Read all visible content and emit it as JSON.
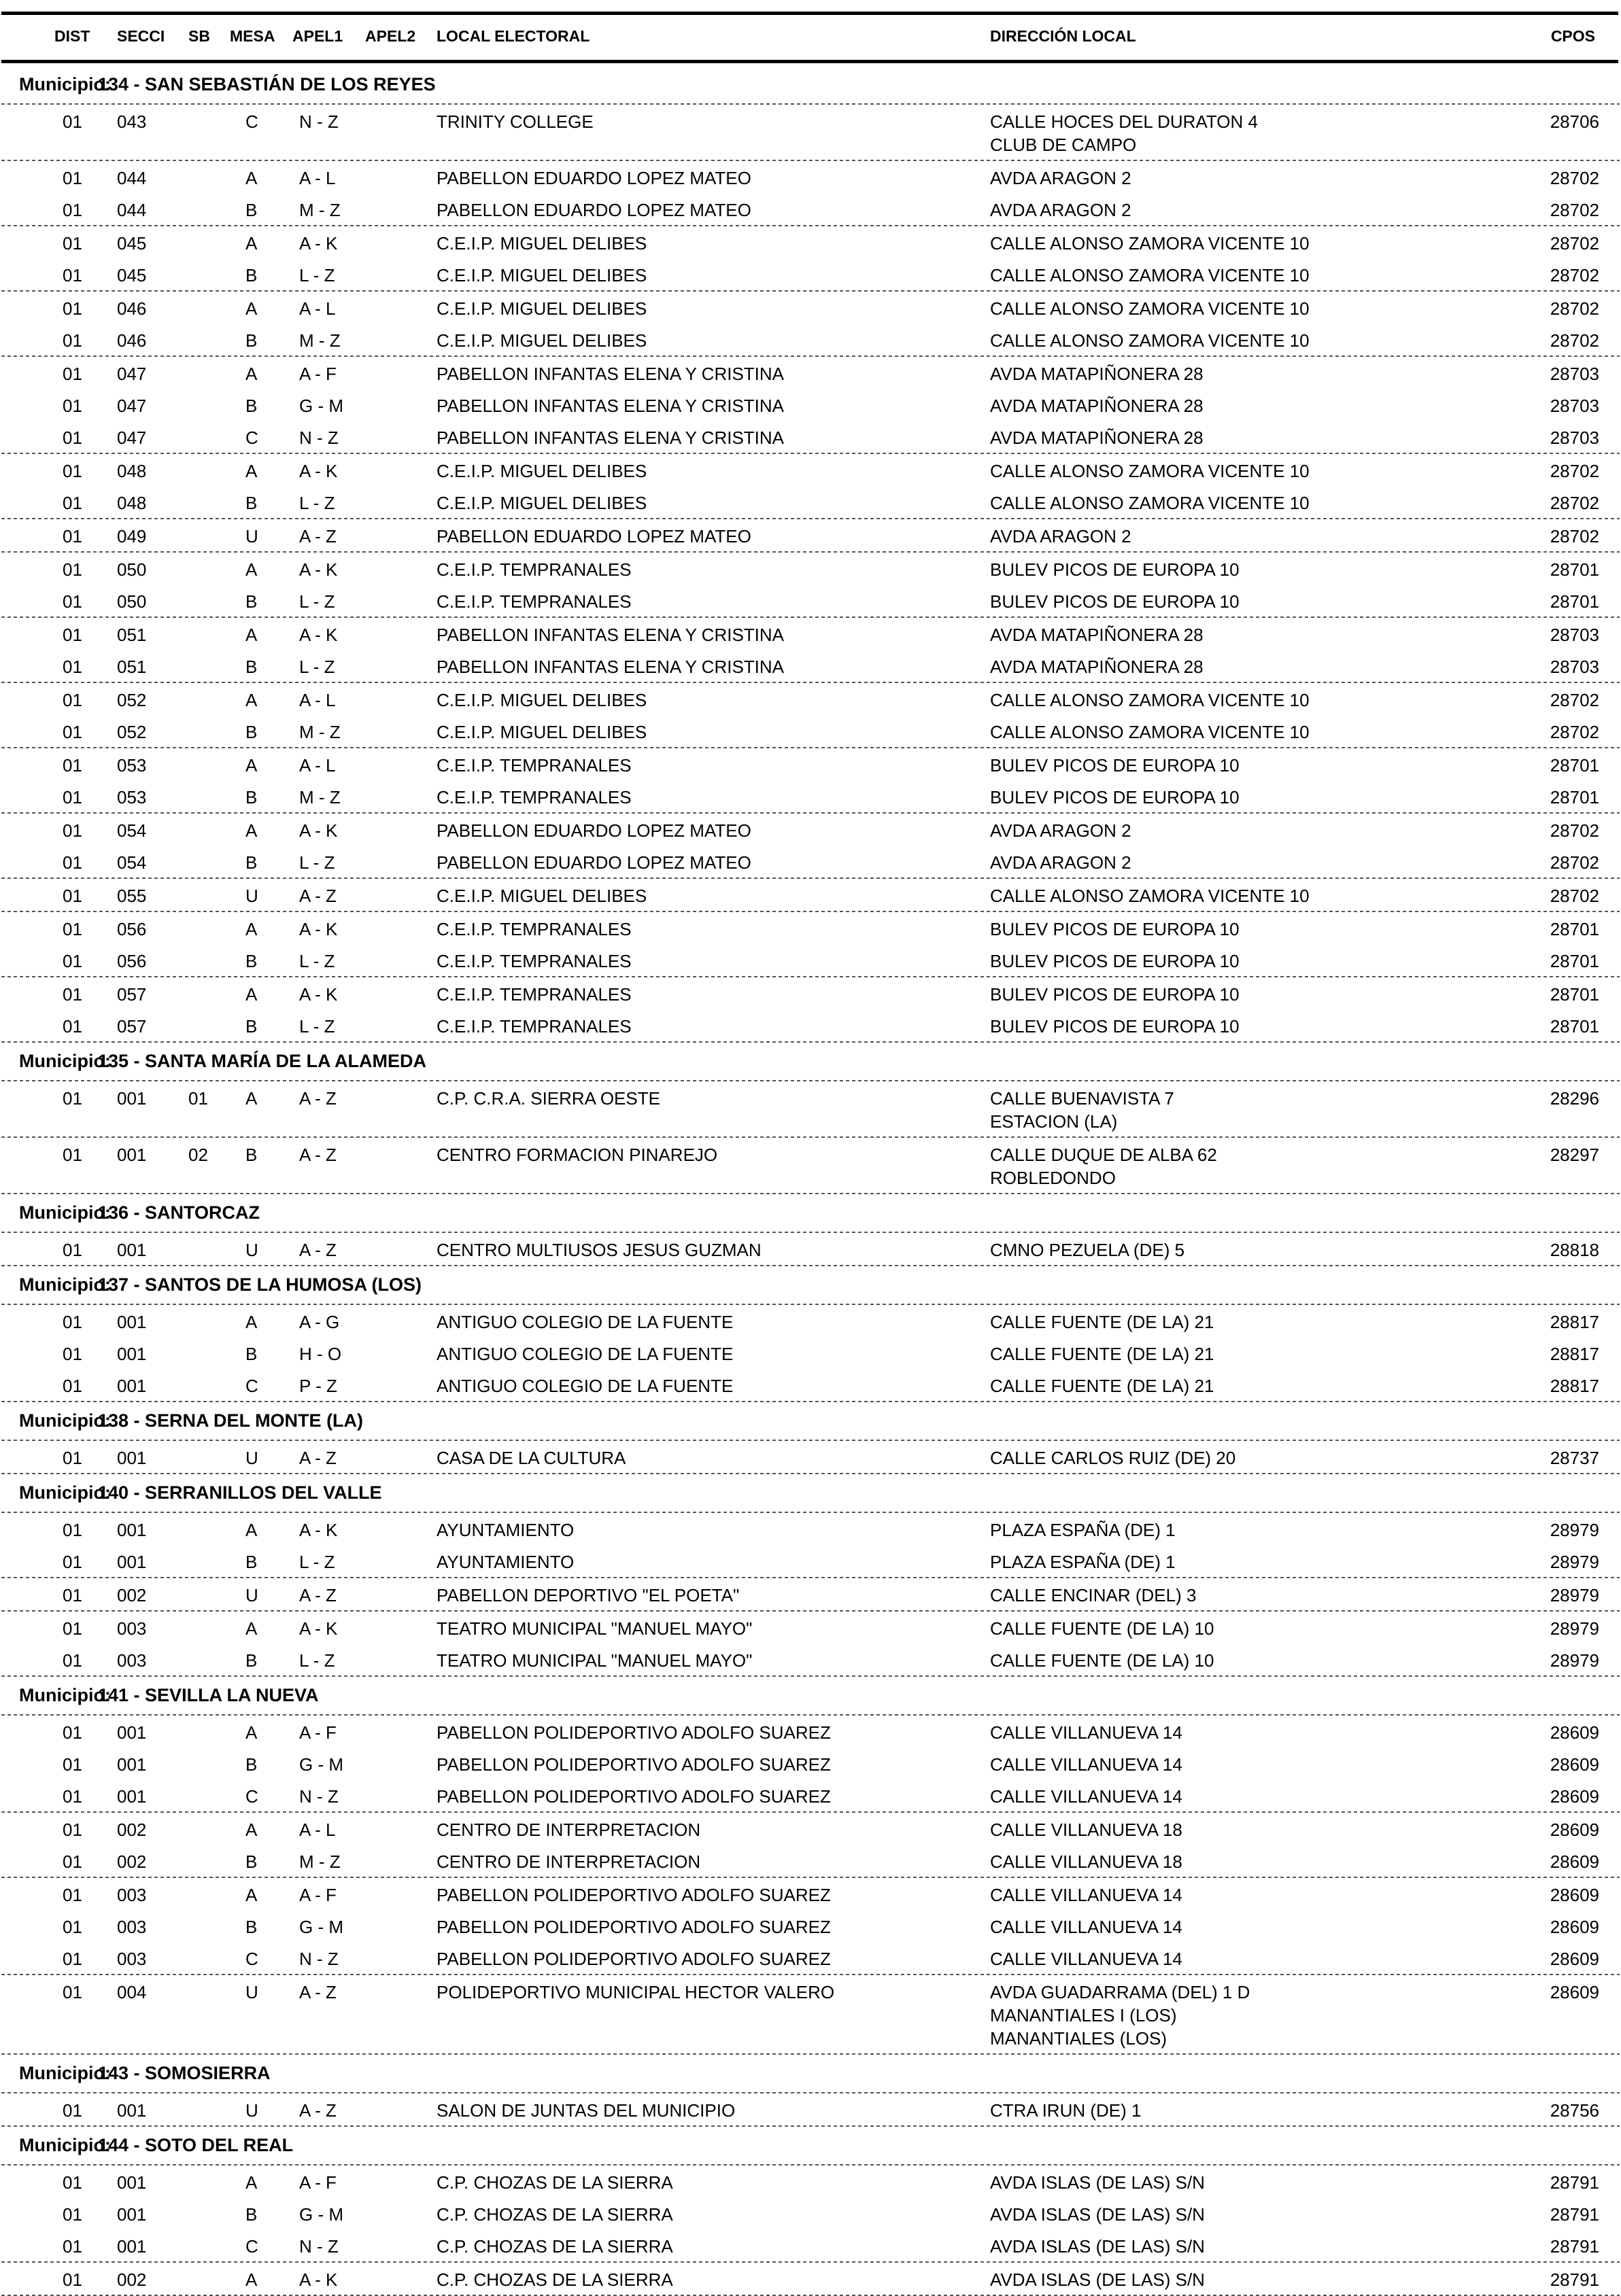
{
  "header": {
    "dist": "DIST",
    "secci": "SECCI",
    "sb": "SB",
    "mesa": "MESA",
    "apel1": "APEL1",
    "apel2": "APEL2",
    "local": "LOCAL ELECTORAL",
    "direccion": "DIRECCIÓN LOCAL",
    "cpos": "CPOS"
  },
  "municipio_label": "Municipio:",
  "municipios": [
    {
      "name": "134 - SAN SEBASTIÁN DE LOS REYES",
      "groups": [
        [
          {
            "dist": "01",
            "secci": "043",
            "sb": "",
            "mesa": "C",
            "apel": "N - Z",
            "local": "TRINITY COLLEGE",
            "dir": [
              "CALLE HOCES DEL DURATON 4",
              "CLUB DE CAMPO"
            ],
            "cpos": "28706"
          }
        ],
        [
          {
            "dist": "01",
            "secci": "044",
            "sb": "",
            "mesa": "A",
            "apel": "A - L",
            "local": "PABELLON EDUARDO LOPEZ MATEO",
            "dir": [
              "AVDA ARAGON 2"
            ],
            "cpos": "28702"
          },
          {
            "dist": "01",
            "secci": "044",
            "sb": "",
            "mesa": "B",
            "apel": "M - Z",
            "local": "PABELLON EDUARDO LOPEZ MATEO",
            "dir": [
              "AVDA ARAGON 2"
            ],
            "cpos": "28702"
          }
        ],
        [
          {
            "dist": "01",
            "secci": "045",
            "sb": "",
            "mesa": "A",
            "apel": "A - K",
            "local": "C.E.I.P. MIGUEL DELIBES",
            "dir": [
              "CALLE ALONSO ZAMORA VICENTE 10"
            ],
            "cpos": "28702"
          },
          {
            "dist": "01",
            "secci": "045",
            "sb": "",
            "mesa": "B",
            "apel": "L - Z",
            "local": "C.E.I.P. MIGUEL DELIBES",
            "dir": [
              "CALLE ALONSO ZAMORA VICENTE 10"
            ],
            "cpos": "28702"
          }
        ],
        [
          {
            "dist": "01",
            "secci": "046",
            "sb": "",
            "mesa": "A",
            "apel": "A - L",
            "local": "C.E.I.P. MIGUEL DELIBES",
            "dir": [
              "CALLE ALONSO ZAMORA VICENTE 10"
            ],
            "cpos": "28702"
          },
          {
            "dist": "01",
            "secci": "046",
            "sb": "",
            "mesa": "B",
            "apel": "M - Z",
            "local": "C.E.I.P. MIGUEL DELIBES",
            "dir": [
              "CALLE ALONSO ZAMORA VICENTE 10"
            ],
            "cpos": "28702"
          }
        ],
        [
          {
            "dist": "01",
            "secci": "047",
            "sb": "",
            "mesa": "A",
            "apel": "A - F",
            "local": "PABELLON INFANTAS ELENA Y CRISTINA",
            "dir": [
              "AVDA MATAPIÑONERA 28"
            ],
            "cpos": "28703"
          },
          {
            "dist": "01",
            "secci": "047",
            "sb": "",
            "mesa": "B",
            "apel": "G - M",
            "local": "PABELLON INFANTAS ELENA Y CRISTINA",
            "dir": [
              "AVDA MATAPIÑONERA 28"
            ],
            "cpos": "28703"
          },
          {
            "dist": "01",
            "secci": "047",
            "sb": "",
            "mesa": "C",
            "apel": "N - Z",
            "local": "PABELLON INFANTAS ELENA Y CRISTINA",
            "dir": [
              "AVDA MATAPIÑONERA 28"
            ],
            "cpos": "28703"
          }
        ],
        [
          {
            "dist": "01",
            "secci": "048",
            "sb": "",
            "mesa": "A",
            "apel": "A - K",
            "local": "C.E.I.P. MIGUEL DELIBES",
            "dir": [
              "CALLE ALONSO ZAMORA VICENTE 10"
            ],
            "cpos": "28702"
          },
          {
            "dist": "01",
            "secci": "048",
            "sb": "",
            "mesa": "B",
            "apel": "L - Z",
            "local": "C.E.I.P. MIGUEL DELIBES",
            "dir": [
              "CALLE ALONSO ZAMORA VICENTE 10"
            ],
            "cpos": "28702"
          }
        ],
        [
          {
            "dist": "01",
            "secci": "049",
            "sb": "",
            "mesa": "U",
            "apel": "A - Z",
            "local": "PABELLON EDUARDO LOPEZ MATEO",
            "dir": [
              "AVDA ARAGON 2"
            ],
            "cpos": "28702"
          }
        ],
        [
          {
            "dist": "01",
            "secci": "050",
            "sb": "",
            "mesa": "A",
            "apel": "A - K",
            "local": "C.E.I.P. TEMPRANALES",
            "dir": [
              "BULEV PICOS DE EUROPA 10"
            ],
            "cpos": "28701"
          },
          {
            "dist": "01",
            "secci": "050",
            "sb": "",
            "mesa": "B",
            "apel": "L - Z",
            "local": "C.E.I.P. TEMPRANALES",
            "dir": [
              "BULEV PICOS DE EUROPA 10"
            ],
            "cpos": "28701"
          }
        ],
        [
          {
            "dist": "01",
            "secci": "051",
            "sb": "",
            "mesa": "A",
            "apel": "A - K",
            "local": "PABELLON INFANTAS ELENA Y CRISTINA",
            "dir": [
              "AVDA MATAPIÑONERA 28"
            ],
            "cpos": "28703"
          },
          {
            "dist": "01",
            "secci": "051",
            "sb": "",
            "mesa": "B",
            "apel": "L - Z",
            "local": "PABELLON INFANTAS ELENA Y CRISTINA",
            "dir": [
              "AVDA MATAPIÑONERA 28"
            ],
            "cpos": "28703"
          }
        ],
        [
          {
            "dist": "01",
            "secci": "052",
            "sb": "",
            "mesa": "A",
            "apel": "A - L",
            "local": "C.E.I.P. MIGUEL DELIBES",
            "dir": [
              "CALLE ALONSO ZAMORA VICENTE 10"
            ],
            "cpos": "28702"
          },
          {
            "dist": "01",
            "secci": "052",
            "sb": "",
            "mesa": "B",
            "apel": "M - Z",
            "local": "C.E.I.P. MIGUEL DELIBES",
            "dir": [
              "CALLE ALONSO ZAMORA VICENTE 10"
            ],
            "cpos": "28702"
          }
        ],
        [
          {
            "dist": "01",
            "secci": "053",
            "sb": "",
            "mesa": "A",
            "apel": "A - L",
            "local": "C.E.I.P. TEMPRANALES",
            "dir": [
              "BULEV PICOS DE EUROPA 10"
            ],
            "cpos": "28701"
          },
          {
            "dist": "01",
            "secci": "053",
            "sb": "",
            "mesa": "B",
            "apel": "M - Z",
            "local": "C.E.I.P. TEMPRANALES",
            "dir": [
              "BULEV PICOS DE EUROPA 10"
            ],
            "cpos": "28701"
          }
        ],
        [
          {
            "dist": "01",
            "secci": "054",
            "sb": "",
            "mesa": "A",
            "apel": "A - K",
            "local": "PABELLON EDUARDO LOPEZ MATEO",
            "dir": [
              "AVDA ARAGON 2"
            ],
            "cpos": "28702"
          },
          {
            "dist": "01",
            "secci": "054",
            "sb": "",
            "mesa": "B",
            "apel": "L - Z",
            "local": "PABELLON EDUARDO LOPEZ MATEO",
            "dir": [
              "AVDA ARAGON 2"
            ],
            "cpos": "28702"
          }
        ],
        [
          {
            "dist": "01",
            "secci": "055",
            "sb": "",
            "mesa": "U",
            "apel": "A - Z",
            "local": "C.E.I.P. MIGUEL DELIBES",
            "dir": [
              "CALLE ALONSO ZAMORA VICENTE 10"
            ],
            "cpos": "28702"
          }
        ],
        [
          {
            "dist": "01",
            "secci": "056",
            "sb": "",
            "mesa": "A",
            "apel": "A - K",
            "local": "C.E.I.P. TEMPRANALES",
            "dir": [
              "BULEV PICOS DE EUROPA 10"
            ],
            "cpos": "28701"
          },
          {
            "dist": "01",
            "secci": "056",
            "sb": "",
            "mesa": "B",
            "apel": "L - Z",
            "local": "C.E.I.P. TEMPRANALES",
            "dir": [
              "BULEV PICOS DE EUROPA 10"
            ],
            "cpos": "28701"
          }
        ],
        [
          {
            "dist": "01",
            "secci": "057",
            "sb": "",
            "mesa": "A",
            "apel": "A - K",
            "local": "C.E.I.P. TEMPRANALES",
            "dir": [
              "BULEV PICOS DE EUROPA 10"
            ],
            "cpos": "28701"
          },
          {
            "dist": "01",
            "secci": "057",
            "sb": "",
            "mesa": "B",
            "apel": "L - Z",
            "local": "C.E.I.P. TEMPRANALES",
            "dir": [
              "BULEV PICOS DE EUROPA 10"
            ],
            "cpos": "28701"
          }
        ]
      ]
    },
    {
      "name": "135 - SANTA MARÍA DE LA ALAMEDA",
      "groups": [
        [
          {
            "dist": "01",
            "secci": "001",
            "sb": "01",
            "mesa": "A",
            "apel": "A - Z",
            "local": "C.P. C.R.A. SIERRA OESTE",
            "dir": [
              "CALLE BUENAVISTA 7",
              "ESTACION (LA)"
            ],
            "cpos": "28296"
          }
        ],
        [
          {
            "dist": "01",
            "secci": "001",
            "sb": "02",
            "mesa": "B",
            "apel": "A - Z",
            "local": "CENTRO FORMACION PINAREJO",
            "dir": [
              "CALLE DUQUE DE ALBA 62",
              "ROBLEDONDO"
            ],
            "cpos": "28297"
          }
        ]
      ]
    },
    {
      "name": "136 - SANTORCAZ",
      "groups": [
        [
          {
            "dist": "01",
            "secci": "001",
            "sb": "",
            "mesa": "U",
            "apel": "A - Z",
            "local": "CENTRO MULTIUSOS JESUS GUZMAN",
            "dir": [
              "CMNO PEZUELA (DE) 5"
            ],
            "cpos": "28818"
          }
        ]
      ]
    },
    {
      "name": "137 - SANTOS DE LA HUMOSA (LOS)",
      "groups": [
        [
          {
            "dist": "01",
            "secci": "001",
            "sb": "",
            "mesa": "A",
            "apel": "A - G",
            "local": "ANTIGUO COLEGIO DE LA FUENTE",
            "dir": [
              "CALLE FUENTE (DE LA) 21"
            ],
            "cpos": "28817"
          },
          {
            "dist": "01",
            "secci": "001",
            "sb": "",
            "mesa": "B",
            "apel": "H - O",
            "local": "ANTIGUO COLEGIO DE LA FUENTE",
            "dir": [
              "CALLE FUENTE (DE LA) 21"
            ],
            "cpos": "28817"
          },
          {
            "dist": "01",
            "secci": "001",
            "sb": "",
            "mesa": "C",
            "apel": "P - Z",
            "local": "ANTIGUO COLEGIO DE LA FUENTE",
            "dir": [
              "CALLE FUENTE (DE LA) 21"
            ],
            "cpos": "28817"
          }
        ]
      ]
    },
    {
      "name": "138 - SERNA DEL MONTE (LA)",
      "groups": [
        [
          {
            "dist": "01",
            "secci": "001",
            "sb": "",
            "mesa": "U",
            "apel": "A - Z",
            "local": "CASA DE LA CULTURA",
            "dir": [
              "CALLE CARLOS RUIZ (DE) 20"
            ],
            "cpos": "28737"
          }
        ]
      ]
    },
    {
      "name": "140 - SERRANILLOS DEL VALLE",
      "groups": [
        [
          {
            "dist": "01",
            "secci": "001",
            "sb": "",
            "mesa": "A",
            "apel": "A - K",
            "local": "AYUNTAMIENTO",
            "dir": [
              "PLAZA ESPAÑA (DE) 1"
            ],
            "cpos": "28979"
          },
          {
            "dist": "01",
            "secci": "001",
            "sb": "",
            "mesa": "B",
            "apel": "L - Z",
            "local": "AYUNTAMIENTO",
            "dir": [
              "PLAZA ESPAÑA (DE) 1"
            ],
            "cpos": "28979"
          }
        ],
        [
          {
            "dist": "01",
            "secci": "002",
            "sb": "",
            "mesa": "U",
            "apel": "A - Z",
            "local": "PABELLON DEPORTIVO \"EL POETA\"",
            "dir": [
              "CALLE ENCINAR (DEL) 3"
            ],
            "cpos": "28979"
          }
        ],
        [
          {
            "dist": "01",
            "secci": "003",
            "sb": "",
            "mesa": "A",
            "apel": "A - K",
            "local": "TEATRO MUNICIPAL \"MANUEL MAYO\"",
            "dir": [
              "CALLE FUENTE (DE LA) 10"
            ],
            "cpos": "28979"
          },
          {
            "dist": "01",
            "secci": "003",
            "sb": "",
            "mesa": "B",
            "apel": "L - Z",
            "local": "TEATRO MUNICIPAL \"MANUEL MAYO\"",
            "dir": [
              "CALLE FUENTE (DE LA) 10"
            ],
            "cpos": "28979"
          }
        ]
      ]
    },
    {
      "name": "141 - SEVILLA LA NUEVA",
      "groups": [
        [
          {
            "dist": "01",
            "secci": "001",
            "sb": "",
            "mesa": "A",
            "apel": "A - F",
            "local": "PABELLON POLIDEPORTIVO ADOLFO SUAREZ",
            "dir": [
              "CALLE VILLANUEVA 14"
            ],
            "cpos": "28609"
          },
          {
            "dist": "01",
            "secci": "001",
            "sb": "",
            "mesa": "B",
            "apel": "G - M",
            "local": "PABELLON POLIDEPORTIVO ADOLFO SUAREZ",
            "dir": [
              "CALLE VILLANUEVA 14"
            ],
            "cpos": "28609"
          },
          {
            "dist": "01",
            "secci": "001",
            "sb": "",
            "mesa": "C",
            "apel": "N - Z",
            "local": "PABELLON POLIDEPORTIVO ADOLFO SUAREZ",
            "dir": [
              "CALLE VILLANUEVA 14"
            ],
            "cpos": "28609"
          }
        ],
        [
          {
            "dist": "01",
            "secci": "002",
            "sb": "",
            "mesa": "A",
            "apel": "A - L",
            "local": "CENTRO DE INTERPRETACION",
            "dir": [
              "CALLE VILLANUEVA 18"
            ],
            "cpos": "28609"
          },
          {
            "dist": "01",
            "secci": "002",
            "sb": "",
            "mesa": "B",
            "apel": "M - Z",
            "local": "CENTRO DE INTERPRETACION",
            "dir": [
              "CALLE VILLANUEVA 18"
            ],
            "cpos": "28609"
          }
        ],
        [
          {
            "dist": "01",
            "secci": "003",
            "sb": "",
            "mesa": "A",
            "apel": "A - F",
            "local": "PABELLON POLIDEPORTIVO ADOLFO SUAREZ",
            "dir": [
              "CALLE VILLANUEVA 14"
            ],
            "cpos": "28609"
          },
          {
            "dist": "01",
            "secci": "003",
            "sb": "",
            "mesa": "B",
            "apel": "G - M",
            "local": "PABELLON POLIDEPORTIVO ADOLFO SUAREZ",
            "dir": [
              "CALLE VILLANUEVA 14"
            ],
            "cpos": "28609"
          },
          {
            "dist": "01",
            "secci": "003",
            "sb": "",
            "mesa": "C",
            "apel": "N - Z",
            "local": "PABELLON POLIDEPORTIVO ADOLFO SUAREZ",
            "dir": [
              "CALLE VILLANUEVA 14"
            ],
            "cpos": "28609"
          }
        ],
        [
          {
            "dist": "01",
            "secci": "004",
            "sb": "",
            "mesa": "U",
            "apel": "A - Z",
            "local": "POLIDEPORTIVO MUNICIPAL HECTOR VALERO",
            "dir": [
              "AVDA GUADARRAMA (DEL) 1 D",
              "MANANTIALES I (LOS)",
              "MANANTIALES (LOS)"
            ],
            "cpos": "28609"
          }
        ]
      ]
    },
    {
      "name": "143 - SOMOSIERRA",
      "groups": [
        [
          {
            "dist": "01",
            "secci": "001",
            "sb": "",
            "mesa": "U",
            "apel": "A - Z",
            "local": "SALON DE JUNTAS DEL MUNICIPIO",
            "dir": [
              "CTRA IRUN (DE) 1"
            ],
            "cpos": "28756"
          }
        ]
      ]
    },
    {
      "name": "144 - SOTO DEL REAL",
      "groups": [
        [
          {
            "dist": "01",
            "secci": "001",
            "sb": "",
            "mesa": "A",
            "apel": "A - F",
            "local": "C.P. CHOZAS DE LA SIERRA",
            "dir": [
              "AVDA ISLAS (DE LAS) S/N"
            ],
            "cpos": "28791"
          },
          {
            "dist": "01",
            "secci": "001",
            "sb": "",
            "mesa": "B",
            "apel": "G - M",
            "local": "C.P. CHOZAS DE LA SIERRA",
            "dir": [
              "AVDA ISLAS (DE LAS) S/N"
            ],
            "cpos": "28791"
          },
          {
            "dist": "01",
            "secci": "001",
            "sb": "",
            "mesa": "C",
            "apel": "N - Z",
            "local": "C.P. CHOZAS DE LA SIERRA",
            "dir": [
              "AVDA ISLAS (DE LAS) S/N"
            ],
            "cpos": "28791"
          }
        ],
        [
          {
            "dist": "01",
            "secci": "002",
            "sb": "",
            "mesa": "A",
            "apel": "A - K",
            "local": "C.P. CHOZAS DE LA SIERRA",
            "dir": [
              "AVDA ISLAS (DE LAS) S/N"
            ],
            "cpos": "28791"
          }
        ]
      ]
    }
  ]
}
